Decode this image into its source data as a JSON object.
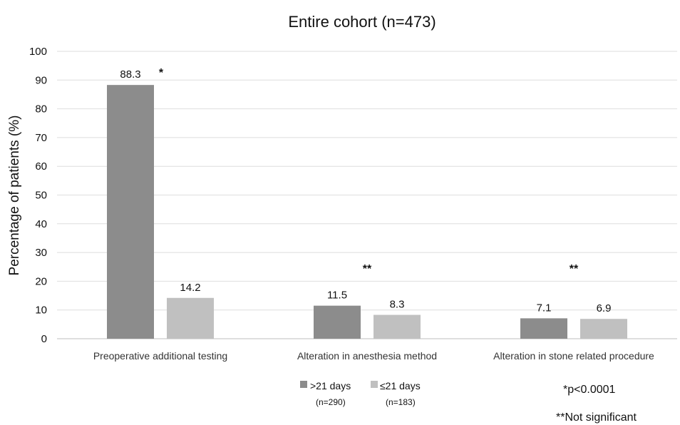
{
  "chart_data": {
    "type": "bar",
    "title": "Entire cohort (n=473)",
    "ylabel": "Percentage of patients (%)",
    "xlabel": "",
    "ylim": [
      0,
      100
    ],
    "yticks": [
      0,
      10,
      20,
      30,
      40,
      50,
      60,
      70,
      80,
      90,
      100
    ],
    "grid": true,
    "legend_position": "bottom",
    "categories": [
      "Preoperative additional testing",
      "Alteration in anesthesia method",
      "Alteration in stone related procedure"
    ],
    "series": [
      {
        "name": ">21 days",
        "sublabel": "(n=290)",
        "color": "#8c8c8c",
        "values": [
          88.3,
          11.5,
          7.1
        ]
      },
      {
        "name": "≤21 days",
        "sublabel": "(n=183)",
        "color": "#c0c0c0",
        "values": [
          14.2,
          8.3,
          6.9
        ]
      }
    ],
    "significance_marks": [
      "*",
      "**",
      "**"
    ],
    "notes": [
      "*p<0.0001",
      "**Not significant"
    ]
  }
}
